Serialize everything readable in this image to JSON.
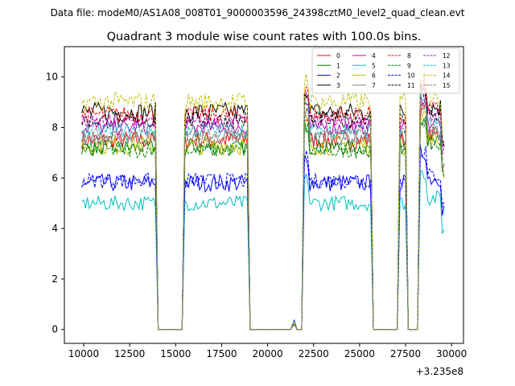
{
  "chart_data": {
    "type": "line",
    "suptitle": "Data file: modeM0/AS1A08_008T01_9000003596_24398cztM0_level2_quad_clean.evt",
    "title": "Quadrant 3 module wise count rates with 100.0s bins.",
    "xlabel": "",
    "ylabel": "",
    "offset_label": "+3.235e8",
    "xlim": [
      8950,
      30650
    ],
    "ylim": [
      -0.55,
      11.2
    ],
    "xticks": [
      10000,
      12500,
      15000,
      17500,
      20000,
      22500,
      25000,
      27500,
      30000
    ],
    "yticks": [
      0,
      2,
      4,
      6,
      8,
      10
    ],
    "legend_position": "top-right",
    "segments": [
      [
        9900,
        13900
      ],
      [
        15500,
        18900
      ],
      [
        22000,
        25600
      ],
      [
        27200,
        27500
      ],
      [
        28300,
        29600
      ]
    ],
    "gap_markers": [
      {
        "x": 21450,
        "y": 0.35
      }
    ],
    "series": [
      {
        "name": "0",
        "color": "#ff0000",
        "dash": "solid",
        "level": 7.5,
        "noise": 0.35
      },
      {
        "name": "1",
        "color": "#008000",
        "dash": "solid",
        "level": 7.2,
        "noise": 0.3
      },
      {
        "name": "2",
        "color": "#0000ff",
        "dash": "solid",
        "level": 5.8,
        "noise": 0.35
      },
      {
        "name": "3",
        "color": "#000000",
        "dash": "solid",
        "level": 8.6,
        "noise": 0.4
      },
      {
        "name": "4",
        "color": "#bf00bf",
        "dash": "solid",
        "level": 8.0,
        "noise": 0.3
      },
      {
        "name": "5",
        "color": "#00bfbf",
        "dash": "solid",
        "level": 5.0,
        "noise": 0.3
      },
      {
        "name": "6",
        "color": "#bfbf00",
        "dash": "solid",
        "level": 7.3,
        "noise": 0.4
      },
      {
        "name": "7",
        "color": "#808080",
        "dash": "solid",
        "level": 7.6,
        "noise": 0.3
      },
      {
        "name": "8",
        "color": "#ff0000",
        "dash": "dashed",
        "level": 8.5,
        "noise": 0.35
      },
      {
        "name": "9",
        "color": "#008000",
        "dash": "dashed",
        "level": 7.1,
        "noise": 0.3
      },
      {
        "name": "10",
        "color": "#0000ff",
        "dash": "dashed",
        "level": 5.9,
        "noise": 0.3
      },
      {
        "name": "11",
        "color": "#000000",
        "dash": "dashed",
        "level": 8.3,
        "noise": 0.35
      },
      {
        "name": "12",
        "color": "#bf00bf",
        "dash": "dashed",
        "level": 8.2,
        "noise": 0.3
      },
      {
        "name": "13",
        "color": "#00bfbf",
        "dash": "dashed",
        "level": 7.9,
        "noise": 0.3
      },
      {
        "name": "14",
        "color": "#bfbf00",
        "dash": "dashed",
        "level": 9.0,
        "noise": 0.4
      },
      {
        "name": "15",
        "color": "#808080",
        "dash": "dashed",
        "level": 7.7,
        "noise": 0.3
      }
    ]
  }
}
